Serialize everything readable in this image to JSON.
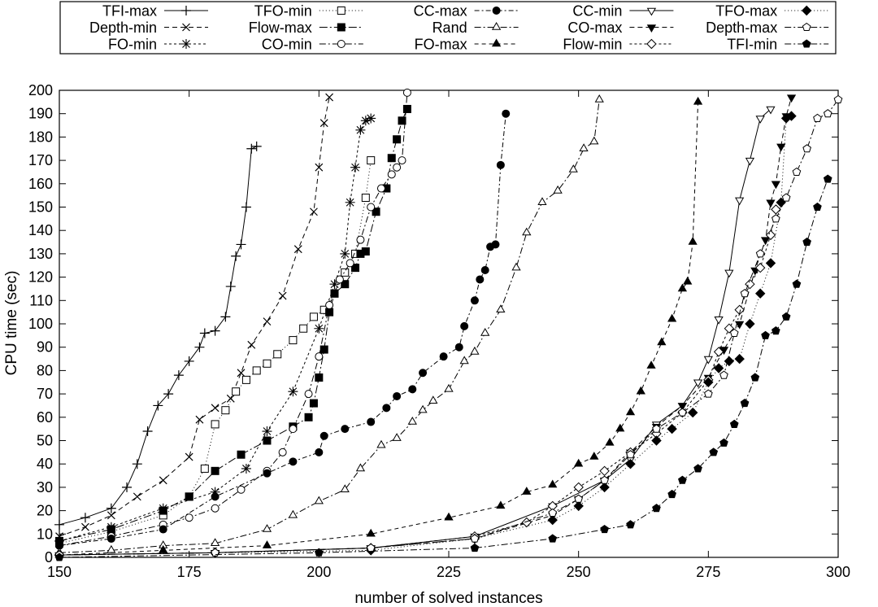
{
  "chart_data": {
    "type": "line",
    "title": "",
    "xlabel": "number of solved instances",
    "ylabel": "CPU time (sec)",
    "xlim": [
      150,
      300
    ],
    "ylim": [
      0,
      200
    ],
    "xticks": [
      150,
      175,
      200,
      225,
      250,
      275,
      300
    ],
    "yticks": [
      0,
      10,
      20,
      30,
      40,
      50,
      60,
      70,
      80,
      90,
      100,
      110,
      120,
      130,
      140,
      150,
      160,
      170,
      180,
      190,
      200
    ],
    "grid": false,
    "legend_position": "top",
    "series": [
      {
        "name": "TFI-max",
        "dash": "solid",
        "marker": "plus",
        "x": [
          150,
          155,
          160,
          163,
          165,
          167,
          169,
          171,
          173,
          175,
          177,
          178,
          180,
          182,
          183,
          184,
          185,
          186,
          187,
          188
        ],
        "y": [
          14,
          17,
          21,
          30,
          40,
          54,
          65,
          70,
          78,
          84,
          90,
          96,
          97,
          103,
          116,
          129,
          134,
          150,
          175,
          176
        ]
      },
      {
        "name": "Depth-min",
        "dash": "6,4",
        "marker": "x",
        "x": [
          150,
          155,
          160,
          165,
          170,
          175,
          177,
          180,
          183,
          185,
          187,
          190,
          193,
          196,
          199,
          200,
          201,
          202
        ],
        "y": [
          9,
          13,
          18,
          26,
          33,
          43,
          59,
          64,
          68,
          79,
          91,
          101,
          112,
          132,
          148,
          167,
          186,
          197
        ]
      },
      {
        "name": "FO-min",
        "dash": "3,3",
        "marker": "star",
        "x": [
          150,
          160,
          170,
          180,
          186,
          190,
          195,
          200,
          203,
          205,
          206,
          207,
          208,
          209,
          210
        ],
        "y": [
          7,
          13,
          21,
          28,
          38,
          54,
          71,
          98,
          117,
          130,
          152,
          167,
          183,
          187,
          188
        ]
      },
      {
        "name": "TFO-min",
        "dash": "1,3",
        "marker": "square-open",
        "x": [
          150,
          160,
          170,
          175,
          178,
          180,
          182,
          184,
          186,
          188,
          190,
          192,
          195,
          197,
          199,
          201,
          203,
          205,
          207,
          209,
          210
        ],
        "y": [
          6,
          11,
          18,
          26,
          38,
          57,
          63,
          71,
          76,
          80,
          83,
          87,
          93,
          98,
          103,
          106,
          113,
          122,
          130,
          154,
          170
        ]
      },
      {
        "name": "Flow-max",
        "dash": "10,3,2,3",
        "marker": "square-filled",
        "x": [
          150,
          160,
          170,
          175,
          180,
          185,
          190,
          195,
          198,
          199,
          200,
          201,
          202,
          203,
          205,
          207,
          208,
          209,
          211,
          213,
          214,
          215,
          216,
          217
        ],
        "y": [
          7,
          12,
          20,
          26,
          37,
          44,
          50,
          56,
          60,
          66,
          77,
          89,
          105,
          113,
          117,
          124,
          130,
          131,
          148,
          158,
          171,
          179,
          187,
          192
        ]
      },
      {
        "name": "CO-min",
        "dash": "8,3,2,3",
        "marker": "circle-open",
        "x": [
          150,
          160,
          170,
          175,
          180,
          185,
          190,
          193,
          195,
          198,
          200,
          202,
          204,
          206,
          208,
          210,
          212,
          214,
          215,
          216,
          217
        ],
        "y": [
          5,
          9,
          14,
          17,
          21,
          29,
          37,
          45,
          55,
          70,
          86,
          108,
          119,
          126,
          136,
          150,
          158,
          164,
          167,
          170,
          199
        ]
      },
      {
        "name": "CC-max",
        "dash": "6,3,2,3",
        "marker": "circle-filled",
        "x": [
          150,
          160,
          170,
          180,
          190,
          195,
          200,
          201,
          205,
          210,
          213,
          215,
          218,
          220,
          224,
          227,
          228,
          230,
          231,
          232,
          233,
          234,
          235,
          236
        ],
        "y": [
          5,
          8,
          12,
          26,
          36,
          41,
          45,
          52,
          55,
          58,
          64,
          69,
          72,
          79,
          86,
          90,
          99,
          110,
          119,
          123,
          133,
          134,
          168,
          190
        ]
      },
      {
        "name": "Rand",
        "dash": "8,3,2,3",
        "marker": "triangle-open",
        "x": [
          150,
          160,
          170,
          180,
          190,
          195,
          200,
          205,
          208,
          212,
          215,
          218,
          220,
          222,
          225,
          228,
          230,
          232,
          235,
          238,
          240,
          243,
          246,
          249,
          251,
          253,
          254
        ],
        "y": [
          2,
          3,
          5,
          6,
          12,
          18,
          24,
          29,
          38,
          48,
          51,
          58,
          63,
          67,
          72,
          84,
          88,
          96,
          106,
          124,
          139,
          152,
          157,
          166,
          175,
          178,
          196
        ]
      },
      {
        "name": "FO-max",
        "dash": "5,4",
        "marker": "triangle-filled",
        "x": [
          150,
          170,
          190,
          210,
          225,
          235,
          240,
          245,
          250,
          253,
          256,
          258,
          260,
          262,
          264,
          266,
          268,
          270,
          271,
          272,
          273
        ],
        "y": [
          1,
          3,
          5,
          10,
          17,
          22,
          28,
          31,
          40,
          43,
          49,
          55,
          62,
          71,
          82,
          92,
          102,
          115,
          118,
          135,
          195
        ]
      },
      {
        "name": "CC-min",
        "dash": "solid",
        "marker": "triangle-down-open",
        "x": [
          150,
          180,
          210,
          230,
          245,
          255,
          260,
          265,
          270,
          273,
          275,
          277,
          279,
          281,
          283,
          285,
          287
        ],
        "y": [
          1,
          2,
          4,
          9,
          22,
          33,
          42,
          57,
          65,
          75,
          85,
          102,
          122,
          153,
          170,
          188,
          192
        ]
      },
      {
        "name": "CO-max",
        "dash": "6,4",
        "marker": "triangle-down-filled",
        "x": [
          150,
          180,
          210,
          230,
          245,
          250,
          255,
          260,
          265,
          270,
          275,
          278,
          281,
          284,
          286,
          287,
          288,
          289,
          290,
          291
        ],
        "y": [
          1,
          2,
          4,
          8,
          18,
          25,
          33,
          45,
          56,
          65,
          77,
          89,
          100,
          123,
          136,
          152,
          160,
          176,
          189,
          197
        ]
      },
      {
        "name": "Flow-min",
        "dash": "3,3",
        "marker": "diamond-open",
        "x": [
          150,
          180,
          210,
          230,
          240,
          245,
          250,
          255,
          260,
          265,
          270,
          275,
          277,
          279,
          281,
          283,
          285,
          287,
          288
        ],
        "y": [
          1,
          2,
          4,
          9,
          15,
          22,
          30,
          37,
          45,
          53,
          62,
          76,
          88,
          98,
          106,
          117,
          124,
          138,
          149
        ]
      },
      {
        "name": "TFO-max",
        "dash": "1,3",
        "marker": "diamond-filled",
        "x": [
          150,
          180,
          210,
          230,
          245,
          250,
          255,
          260,
          265,
          268,
          272,
          275,
          277,
          279,
          281,
          283,
          285,
          287,
          289,
          290,
          291
        ],
        "y": [
          1,
          2,
          3,
          8,
          16,
          22,
          30,
          40,
          50,
          55,
          62,
          75,
          81,
          84,
          85,
          100,
          113,
          126,
          152,
          188,
          189
        ]
      },
      {
        "name": "Depth-max",
        "dash": "8,3,2,3",
        "marker": "pentagon-open",
        "x": [
          150,
          180,
          210,
          230,
          245,
          250,
          255,
          260,
          265,
          270,
          275,
          278,
          280,
          282,
          285,
          288,
          290,
          292,
          294,
          296,
          298,
          300
        ],
        "y": [
          1,
          2,
          4,
          8,
          19,
          25,
          33,
          44,
          55,
          62,
          70,
          78,
          96,
          113,
          130,
          145,
          154,
          165,
          175,
          188,
          190,
          196
        ]
      },
      {
        "name": "TFI-min",
        "dash": "8,3,2,3",
        "marker": "pentagon-filled",
        "x": [
          150,
          200,
          230,
          245,
          255,
          260,
          265,
          268,
          270,
          273,
          276,
          278,
          280,
          282,
          284,
          286,
          288,
          290,
          292,
          294,
          296,
          298
        ],
        "y": [
          0,
          2,
          4,
          8,
          12,
          14,
          21,
          27,
          33,
          38,
          45,
          49,
          57,
          66,
          77,
          95,
          97,
          103,
          117,
          135,
          150,
          162
        ]
      }
    ]
  }
}
